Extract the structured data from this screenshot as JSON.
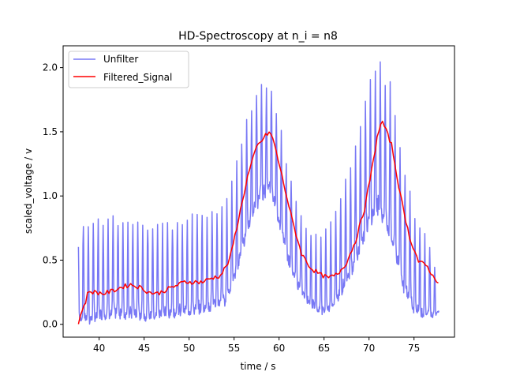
{
  "chart_data": {
    "type": "line",
    "title": "HD-Spectroscopy at n_i = n8",
    "xlabel": "time / s",
    "ylabel": "scaled_voltage / v",
    "xlim": [
      36.0,
      79.5
    ],
    "ylim": [
      -0.1,
      2.17
    ],
    "xticks": [
      40,
      45,
      50,
      55,
      60,
      65,
      70,
      75
    ],
    "yticks": [
      0.0,
      0.5,
      1.0,
      1.5,
      2.0
    ],
    "xtick_labels": [
      "40",
      "45",
      "50",
      "55",
      "60",
      "65",
      "70",
      "75"
    ],
    "ytick_labels": [
      "0.0",
      "0.5",
      "1.0",
      "1.5",
      "2.0"
    ],
    "legend_placement": "upper-left",
    "grid": false,
    "series": [
      {
        "name": "Unfilter",
        "color": "#7878f5",
        "oscillation_period_s": 0.55,
        "envelope_x": [
          37.7,
          38.0,
          38.5,
          39.0,
          40.0,
          42.0,
          45.0,
          48.0,
          50.0,
          52.0,
          54.0,
          55.0,
          56.0,
          57.0,
          58.0,
          59.0,
          60.0,
          61.0,
          62.0,
          63.0,
          64.0,
          65.0,
          66.0,
          67.0,
          68.0,
          69.0,
          70.0,
          71.0,
          72.0,
          73.0,
          74.0,
          75.0,
          76.0,
          77.0,
          77.8
        ],
        "envelope_high": [
          0.6,
          0.85,
          0.75,
          0.78,
          0.8,
          0.82,
          0.8,
          0.8,
          0.82,
          0.86,
          0.95,
          1.15,
          1.45,
          1.75,
          1.9,
          1.88,
          1.6,
          1.25,
          0.95,
          0.75,
          0.68,
          0.7,
          0.82,
          1.05,
          1.3,
          1.55,
          1.85,
          2.05,
          1.95,
          1.65,
          1.2,
          0.85,
          0.7,
          0.6,
          0.22
        ],
        "envelope_low": [
          0.0,
          0.05,
          0.05,
          0.03,
          0.07,
          0.08,
          0.06,
          0.08,
          0.1,
          0.12,
          0.18,
          0.35,
          0.6,
          0.85,
          1.0,
          1.05,
          0.8,
          0.5,
          0.3,
          0.2,
          0.12,
          0.1,
          0.15,
          0.25,
          0.4,
          0.6,
          0.8,
          0.9,
          0.75,
          0.5,
          0.25,
          0.12,
          0.08,
          0.06,
          0.1
        ]
      },
      {
        "name": "Filtered_Signal",
        "color": "#ff0000",
        "x": [
          37.7,
          38.0,
          38.4,
          38.8,
          39.5,
          40.5,
          41.5,
          42.5,
          43.5,
          44.5,
          45.5,
          46.5,
          47.5,
          48.5,
          49.5,
          50.5,
          51.5,
          52.5,
          53.5,
          54.5,
          55.5,
          56.5,
          57.5,
          58.5,
          59.0,
          59.5,
          60.5,
          61.5,
          62.5,
          63.5,
          64.5,
          65.5,
          66.5,
          67.5,
          68.5,
          69.5,
          70.5,
          71.0,
          71.5,
          72.5,
          73.5,
          74.5,
          75.5,
          76.5,
          77.2,
          77.8
        ],
        "y": [
          0.0,
          0.1,
          0.15,
          0.26,
          0.25,
          0.24,
          0.26,
          0.29,
          0.31,
          0.29,
          0.25,
          0.24,
          0.27,
          0.3,
          0.33,
          0.33,
          0.33,
          0.36,
          0.38,
          0.5,
          0.82,
          1.15,
          1.38,
          1.47,
          1.5,
          1.4,
          1.1,
          0.8,
          0.55,
          0.44,
          0.39,
          0.36,
          0.39,
          0.48,
          0.65,
          0.9,
          1.28,
          1.5,
          1.58,
          1.4,
          1.0,
          0.68,
          0.49,
          0.45,
          0.36,
          0.33
        ]
      }
    ]
  }
}
